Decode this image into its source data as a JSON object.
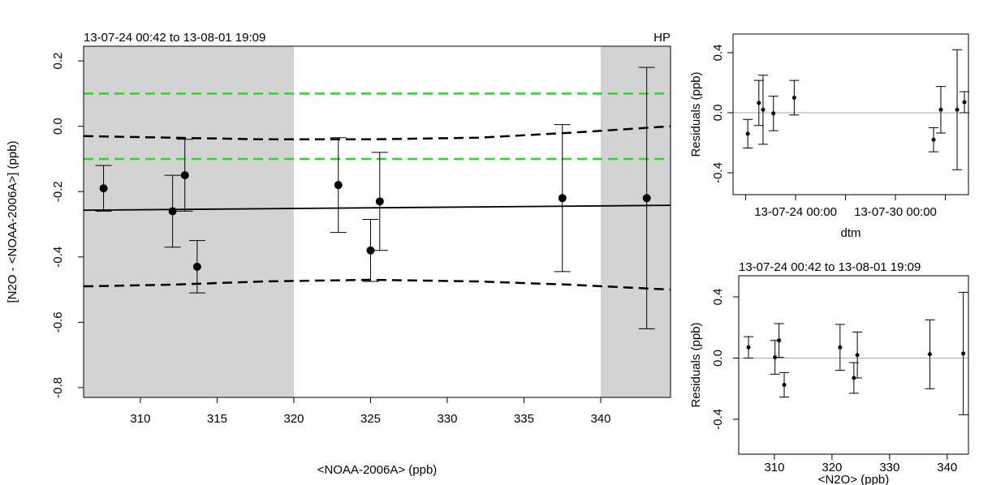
{
  "chart_data": [
    {
      "type": "scatter",
      "title": "13-07-24 00:42 to 13-08-01 19:09",
      "corner_label": "HP",
      "x_label": "<NOAA-2006A> (ppb)",
      "y_label": "[N2O - <NOAA-2006A>] (ppb)",
      "color": "#000000",
      "x": [
        307.6,
        312.1,
        312.9,
        313.7,
        322.9,
        325.0,
        325.6,
        337.5,
        343.0
      ],
      "values": [
        -0.19,
        -0.26,
        -0.15,
        -0.43,
        -0.18,
        -0.38,
        -0.23,
        -0.22,
        -0.22
      ],
      "errors": [
        0.07,
        0.11,
        0.11,
        0.08,
        0.145,
        0.095,
        0.15,
        0.225,
        0.4
      ],
      "marker_size": 5,
      "shaded_x": [
        [
          306.3,
          320
        ],
        [
          340,
          344.55
        ]
      ],
      "shade_color": "#d3d3d3",
      "lines": [
        {
          "color": "#000000",
          "dash": false,
          "x": [
            306.3,
            344.55
          ],
          "values": [
            -0.257,
            -0.242
          ]
        },
        {
          "color": "#000000",
          "dash": true,
          "x": [
            306.3,
            312,
            318,
            325,
            332,
            338,
            344.55
          ],
          "values": [
            -0.03,
            -0.035,
            -0.04,
            -0.04,
            -0.035,
            -0.02,
            0.0
          ]
        },
        {
          "color": "#000000",
          "dash": true,
          "x": [
            306.3,
            312,
            318,
            325,
            332,
            338,
            344.55
          ],
          "values": [
            -0.49,
            -0.485,
            -0.475,
            -0.47,
            -0.475,
            -0.485,
            -0.5
          ]
        },
        {
          "color": "#22dd22",
          "dash": true,
          "x": [
            306.3,
            344.55
          ],
          "values": [
            0.1,
            0.1
          ]
        },
        {
          "color": "#22dd22",
          "dash": true,
          "x": [
            306.3,
            344.55
          ],
          "values": [
            -0.1,
            -0.1
          ]
        }
      ],
      "xlim": [
        306.3,
        344.55
      ],
      "ylim": [
        -0.83,
        0.245
      ],
      "xticks": [
        310,
        315,
        320,
        325,
        330,
        335,
        340
      ],
      "yticks": [
        0.2,
        {
          "value": 0,
          "label": "0.0"
        },
        -0.2,
        -0.4,
        -0.6,
        -0.8
      ]
    },
    {
      "type": "scatter",
      "x_label": "dtm",
      "y_label": "Residuals (ppb)",
      "color": "#000000",
      "x": [
        "13-07-21 03:00",
        "13-07-21 19:00",
        "13-07-22 01:00",
        "13-07-22 16:00",
        "13-07-23 22:00",
        "13-08-01 07:00",
        "13-08-01 17:30",
        "13-08-02 17:00",
        "13-08-03 03:30"
      ],
      "values": [
        -0.14,
        0.065,
        0.02,
        -0.005,
        0.1,
        -0.18,
        0.02,
        0.02,
        0.07
      ],
      "errors": [
        0.095,
        0.15,
        0.23,
        0.115,
        0.115,
        0.08,
        0.155,
        0.4,
        0.07
      ],
      "marker_size": 2.5,
      "hline": 0,
      "hline_color": "#aaaaaa",
      "xlim": [
        "13-07-20 05:45",
        "13-08-03 09:20"
      ],
      "ylim": [
        -0.546,
        0.524
      ],
      "xticks": [
        {
          "value": "13-07-21 00:00",
          "label": null
        },
        "13-07-24 00:00",
        {
          "value": "13-07-27 00:00",
          "label": null
        },
        "13-07-30 00:00",
        {
          "value": "13-08-02 00:00",
          "label": null
        }
      ],
      "yticks": [
        0.4,
        {
          "value": 0,
          "label": "0.0"
        },
        -0.4
      ]
    },
    {
      "type": "scatter",
      "title": "13-07-24 00:42 to 13-08-01 19:09",
      "x_label": "<N2O> (ppb)",
      "y_label": "Residuals (ppb)",
      "color": "#000000",
      "x": [
        305.5,
        310.1,
        310.8,
        311.7,
        321.4,
        323.8,
        324.4,
        337.0,
        342.8
      ],
      "values": [
        0.07,
        0.005,
        0.115,
        -0.175,
        0.07,
        -0.13,
        0.02,
        0.025,
        0.03
      ],
      "errors": [
        0.07,
        0.11,
        0.11,
        0.08,
        0.15,
        0.1,
        0.15,
        0.225,
        0.4
      ],
      "marker_size": 2.5,
      "hline": 0,
      "hline_color": "#aaaaaa",
      "xlim": [
        303.8,
        343.7
      ],
      "ylim": [
        -0.628,
        0.538
      ],
      "xticks": [
        310,
        320,
        330,
        340
      ],
      "yticks": [
        0.4,
        {
          "value": 0,
          "label": "0.0"
        },
        -0.4
      ]
    }
  ]
}
